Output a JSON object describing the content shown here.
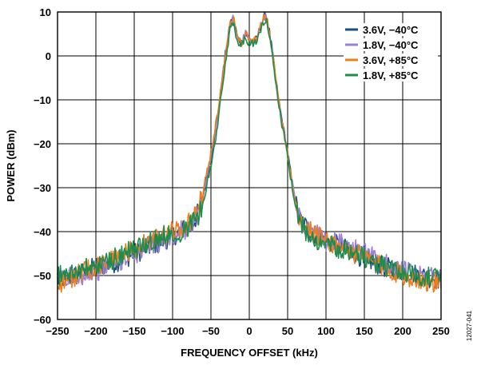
{
  "figure_id": "12027-041",
  "chart_data": {
    "type": "line",
    "title": "",
    "xlabel": "FREQUENCY OFFSET (kHz)",
    "ylabel": "POWER (dBm)",
    "xlim": [
      -250,
      250
    ],
    "ylim": [
      -60,
      10
    ],
    "x_ticks": [
      -250,
      -200,
      -150,
      -100,
      -50,
      0,
      50,
      100,
      150,
      200,
      250
    ],
    "y_ticks": [
      10,
      0,
      -10,
      -20,
      -30,
      -40,
      -50,
      -60
    ],
    "x_tick_labels": [
      "−250",
      "−200",
      "−150",
      "−100",
      "−50",
      "0",
      "50",
      "100",
      "150",
      "200",
      "250"
    ],
    "y_tick_labels": [
      "10",
      "0",
      "−10",
      "−20",
      "−30",
      "−40",
      "−50",
      "−60"
    ],
    "grid": true,
    "legend_position": "top-right",
    "x": [
      -250,
      -225,
      -200,
      -175,
      -150,
      -125,
      -100,
      -90,
      -80,
      -75,
      -70,
      -65,
      -60,
      -55,
      -50,
      -45,
      -40,
      -35,
      -30,
      -25,
      -22,
      -20,
      -15,
      -10,
      -5,
      0,
      5,
      10,
      15,
      20,
      22,
      25,
      30,
      35,
      40,
      45,
      50,
      55,
      60,
      65,
      70,
      75,
      80,
      90,
      100,
      125,
      150,
      175,
      200,
      225,
      250
    ],
    "series": [
      {
        "name": "3.6V, −40°C",
        "color": "#1f4e79",
        "values": [
          -51,
          -50,
          -48,
          -47,
          -45,
          -43,
          -41,
          -40,
          -39,
          -38,
          -37,
          -35,
          -32,
          -27,
          -23,
          -18,
          -12,
          -5,
          2,
          7,
          9,
          8,
          4,
          3,
          5,
          4,
          3,
          4,
          7,
          9,
          9,
          7,
          1,
          -6,
          -12,
          -17,
          -22,
          -28,
          -33,
          -37,
          -38,
          -39,
          -40,
          -41,
          -42,
          -44,
          -46,
          -48,
          -49,
          -50,
          -51
        ]
      },
      {
        "name": "1.8V, −40°C",
        "color": "#9b7fd4",
        "values": [
          -51,
          -50,
          -49,
          -47,
          -45,
          -43,
          -41,
          -40,
          -39,
          -38,
          -37,
          -35,
          -32,
          -27,
          -23,
          -18,
          -12,
          -5,
          2,
          7,
          9,
          8,
          4,
          3,
          5,
          4,
          3,
          4,
          7,
          9,
          9,
          7,
          1,
          -6,
          -12,
          -17,
          -22,
          -28,
          -33,
          -37,
          -38,
          -39,
          -40,
          -41,
          -42,
          -43,
          -45,
          -47,
          -49,
          -50,
          -51
        ]
      },
      {
        "name": "3.6V, +85°C",
        "color": "#f07d1a",
        "values": [
          -52,
          -50,
          -48,
          -46,
          -44,
          -42,
          -40,
          -39,
          -38,
          -37,
          -36,
          -34,
          -31,
          -26,
          -22,
          -17,
          -11,
          -5,
          2,
          7,
          8,
          8,
          4,
          3,
          5,
          4,
          3,
          4,
          7,
          9,
          9,
          7,
          1,
          -6,
          -12,
          -17,
          -22,
          -28,
          -33,
          -37,
          -38,
          -39,
          -40,
          -41,
          -42,
          -44,
          -46,
          -48,
          -50,
          -51,
          -52
        ]
      },
      {
        "name": "1.8V, +85°C",
        "color": "#1e8c4c",
        "values": [
          -50,
          -49,
          -48,
          -46,
          -44,
          -42,
          -40,
          -40,
          -39,
          -38,
          -37,
          -36,
          -33,
          -29,
          -25,
          -20,
          -14,
          -7,
          0,
          6,
          8,
          7,
          3,
          3,
          4,
          3,
          3,
          3,
          6,
          8,
          8,
          6,
          0,
          -7,
          -13,
          -18,
          -23,
          -29,
          -34,
          -38,
          -39,
          -40,
          -41,
          -42,
          -43,
          -44,
          -46,
          -48,
          -49,
          -50,
          -51
        ]
      }
    ]
  }
}
